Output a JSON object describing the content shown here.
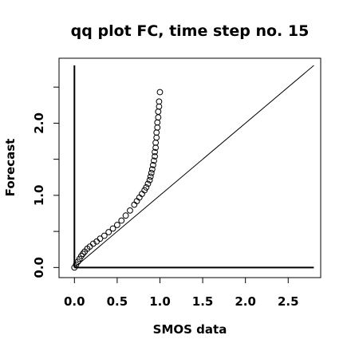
{
  "chart_data": {
    "type": "scatter",
    "title": "qq plot FC, time step no. 15",
    "xlabel": "SMOS data",
    "ylabel": "Forecast",
    "xlim": [
      -0.18,
      2.88
    ],
    "ylim": [
      -0.14,
      2.9
    ],
    "x_ticks": [
      0.0,
      0.5,
      1.0,
      1.5,
      2.0,
      2.5
    ],
    "x_tick_labels": [
      "0.0",
      "0.5",
      "1.0",
      "1.5",
      "2.0",
      "2.5"
    ],
    "y_ticks": [
      0.0,
      0.5,
      1.0,
      1.5,
      2.0,
      2.5
    ],
    "y_tick_labels": [
      "0.0",
      "",
      "1.0",
      "",
      "2.0",
      ""
    ],
    "grid": false,
    "reference_line": {
      "from": [
        0,
        0
      ],
      "to": [
        2.8,
        2.8
      ]
    },
    "vertical_axis_line": {
      "x": 0,
      "y_from": 0,
      "y_to": 2.8
    },
    "horizontal_axis_line": {
      "y": 0,
      "x_from": 0,
      "x_to": 2.8
    },
    "series": [
      {
        "marker": "open-circle",
        "x": [
          0.0,
          0.02,
          0.04,
          0.06,
          0.08,
          0.1,
          0.12,
          0.15,
          0.18,
          0.22,
          0.26,
          0.3,
          0.35,
          0.4,
          0.45,
          0.5,
          0.55,
          0.6,
          0.65,
          0.7,
          0.73,
          0.76,
          0.79,
          0.82,
          0.84,
          0.86,
          0.88,
          0.89,
          0.9,
          0.91,
          0.92,
          0.93,
          0.94,
          0.94,
          0.95,
          0.95,
          0.96,
          0.96,
          0.97,
          0.97,
          0.98,
          0.98,
          0.99,
          0.99,
          1.0
        ],
        "y": [
          0.0,
          0.04,
          0.08,
          0.12,
          0.16,
          0.19,
          0.22,
          0.26,
          0.29,
          0.33,
          0.36,
          0.4,
          0.44,
          0.49,
          0.54,
          0.59,
          0.65,
          0.72,
          0.79,
          0.87,
          0.92,
          0.97,
          1.02,
          1.07,
          1.11,
          1.16,
          1.21,
          1.26,
          1.31,
          1.36,
          1.42,
          1.48,
          1.54,
          1.6,
          1.66,
          1.73,
          1.8,
          1.87,
          1.94,
          2.01,
          2.08,
          2.16,
          2.23,
          2.3,
          2.43
        ]
      }
    ]
  }
}
